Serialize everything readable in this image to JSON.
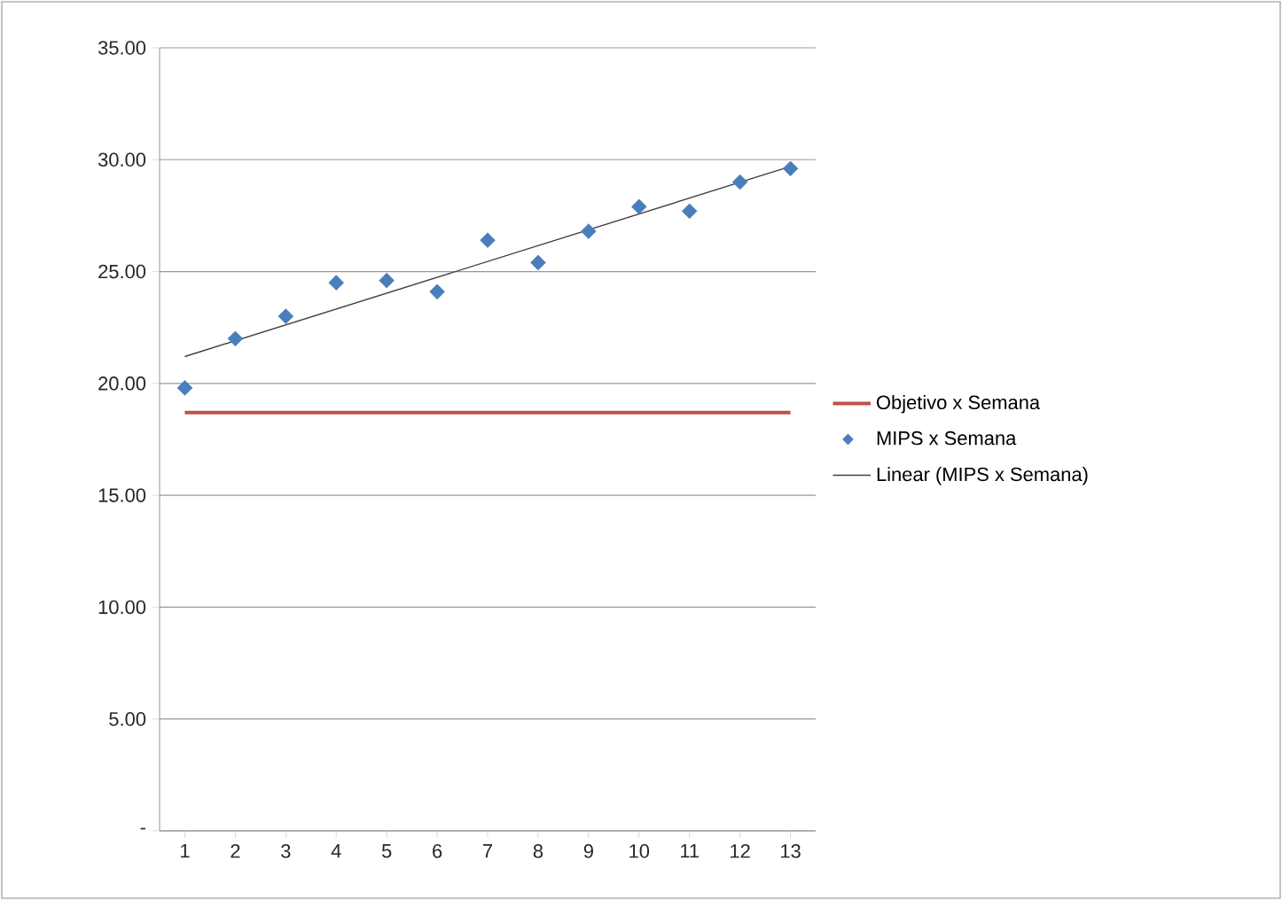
{
  "chart_data": {
    "type": "scatter",
    "x": [
      1,
      2,
      3,
      4,
      5,
      6,
      7,
      8,
      9,
      10,
      11,
      12,
      13
    ],
    "series": [
      {
        "name": "Objetivo x Semana",
        "type": "line",
        "marker": "none",
        "color": "#c0504d",
        "values": [
          18.7,
          18.7,
          18.7,
          18.7,
          18.7,
          18.7,
          18.7,
          18.7,
          18.7,
          18.7,
          18.7,
          18.7,
          18.7
        ]
      },
      {
        "name": "MIPS x Semana",
        "marker": "diamond",
        "color": "#4a7ebb",
        "values": [
          19.8,
          22.0,
          23.0,
          24.5,
          24.6,
          24.1,
          26.4,
          25.4,
          26.8,
          27.9,
          27.7,
          29.0,
          29.6
        ]
      },
      {
        "name": "Linear (MIPS x Semana)",
        "type": "line",
        "marker": "none",
        "color": "#404040",
        "x": [
          1,
          13
        ],
        "values": [
          21.2,
          29.7
        ]
      }
    ],
    "xlim": [
      0.5,
      13.5
    ],
    "xticks": [
      1,
      2,
      3,
      4,
      5,
      6,
      7,
      8,
      9,
      10,
      11,
      12,
      13
    ],
    "ylim": [
      0,
      35
    ],
    "yticks": [
      {
        "value": 0,
        "label": "-"
      },
      {
        "value": 5,
        "label": "5.00"
      },
      {
        "value": 10,
        "label": "10.00"
      },
      {
        "value": 15,
        "label": "15.00"
      },
      {
        "value": 20,
        "label": "20.00"
      },
      {
        "value": 25,
        "label": "25.00"
      },
      {
        "value": 30,
        "label": "30.00"
      },
      {
        "value": 35,
        "label": "35.00"
      }
    ],
    "grid": "y",
    "legend": "right"
  }
}
